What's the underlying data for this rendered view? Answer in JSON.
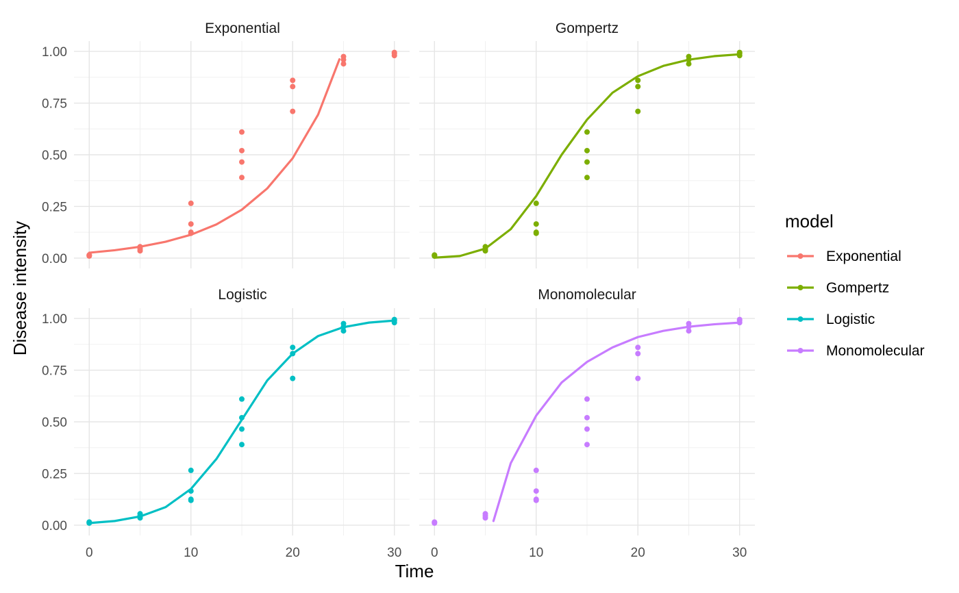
{
  "chart_data": {
    "type": "scatter",
    "xlabel": "Time",
    "ylabel": "Disease intensity",
    "xlim": [
      -1.5,
      31.5
    ],
    "ylim": [
      -0.05,
      1.05
    ],
    "x_ticks": [
      0,
      10,
      20,
      30
    ],
    "x_tick_labels": [
      "0",
      "10",
      "20",
      "30"
    ],
    "x_minor_ticks": [
      5,
      15,
      25
    ],
    "y_ticks": [
      0,
      0.25,
      0.5,
      0.75,
      1
    ],
    "y_tick_labels": [
      "0.00",
      "0.25",
      "0.50",
      "0.75",
      "1.00"
    ],
    "y_minor_ticks": [
      0.125,
      0.375,
      0.625,
      0.875
    ],
    "grid": true,
    "legend": {
      "title": "model",
      "position": "right",
      "entries": [
        "Exponential",
        "Gompertz",
        "Logistic",
        "Monomolecular"
      ]
    },
    "observations": {
      "x": [
        0,
        0,
        0,
        5,
        5,
        5,
        10,
        10,
        10,
        10,
        15,
        15,
        15,
        15,
        20,
        20,
        20,
        25,
        25,
        25,
        30,
        30,
        30
      ],
      "y": [
        0.01,
        0.012,
        0.015,
        0.035,
        0.045,
        0.055,
        0.12,
        0.125,
        0.165,
        0.265,
        0.39,
        0.465,
        0.52,
        0.61,
        0.71,
        0.83,
        0.86,
        0.94,
        0.96,
        0.975,
        0.98,
        0.99,
        0.995
      ]
    },
    "facets": [
      {
        "name": "Exponential",
        "color": "#F8766D",
        "fit": {
          "x": [
            0,
            2.5,
            5,
            7.5,
            10,
            12.5,
            15,
            17.5,
            20,
            22.5,
            24.6
          ],
          "y": [
            0.026,
            0.038,
            0.055,
            0.079,
            0.113,
            0.163,
            0.234,
            0.337,
            0.483,
            0.694,
            0.962
          ]
        }
      },
      {
        "name": "Gompertz",
        "color": "#7CAE00",
        "fit": {
          "x": [
            0,
            2.5,
            5,
            7.5,
            10,
            12.5,
            15,
            17.5,
            20,
            22.5,
            25,
            27.5,
            30
          ],
          "y": [
            0.002,
            0.01,
            0.046,
            0.14,
            0.3,
            0.5,
            0.67,
            0.8,
            0.88,
            0.93,
            0.96,
            0.977,
            0.986
          ]
        }
      },
      {
        "name": "Logistic",
        "color": "#00BFC4",
        "fit": {
          "x": [
            0,
            2.5,
            5,
            7.5,
            10,
            12.5,
            15,
            17.5,
            20,
            22.5,
            25,
            27.5,
            30
          ],
          "y": [
            0.01,
            0.02,
            0.042,
            0.087,
            0.175,
            0.32,
            0.51,
            0.7,
            0.83,
            0.915,
            0.958,
            0.98,
            0.99
          ]
        }
      },
      {
        "name": "Monomolecular",
        "color": "#C77CFF",
        "fit": {
          "x": [
            5.8,
            7.5,
            10,
            12.5,
            15,
            17.5,
            20,
            22.5,
            25,
            27.5,
            30
          ],
          "y": [
            0.02,
            0.3,
            0.53,
            0.69,
            0.79,
            0.86,
            0.91,
            0.94,
            0.96,
            0.972,
            0.98
          ]
        }
      }
    ]
  }
}
